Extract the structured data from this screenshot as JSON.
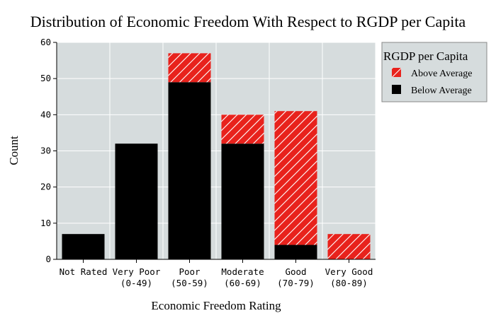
{
  "chart_data": {
    "type": "bar",
    "stacked": true,
    "title": "Distribution of Economic Freedom With Respect to RGDP per Capita",
    "xlabel": "Economic Freedom Rating",
    "ylabel": "Count",
    "ylim": [
      0,
      60
    ],
    "yticks": [
      0,
      10,
      20,
      30,
      40,
      50,
      60
    ],
    "grid": true,
    "categories": [
      [
        "Not Rated"
      ],
      [
        "Very Poor",
        "(0-49)"
      ],
      [
        "Poor",
        "(50-59)"
      ],
      [
        "Moderate",
        "(60-69)"
      ],
      [
        "Good",
        "(70-79)"
      ],
      [
        "Very Good",
        "(80-89)"
      ]
    ],
    "series": [
      {
        "name": "Below Average",
        "values": [
          7,
          32,
          49,
          32,
          4,
          0
        ],
        "color": "#000000",
        "pattern": "solid"
      },
      {
        "name": "Above Average",
        "values": [
          0,
          0,
          8,
          8,
          37,
          7
        ],
        "color": "#e8221c",
        "pattern": "diagonal-hatch-white"
      }
    ],
    "legend": {
      "title": "RGDP per Capita",
      "placement": "right-top",
      "order": [
        "Above Average",
        "Below Average"
      ]
    },
    "colors": {
      "plot_bg": "#d6dcdd",
      "grid": "#ffffff",
      "legend_bg": "#d6dcdd"
    }
  }
}
